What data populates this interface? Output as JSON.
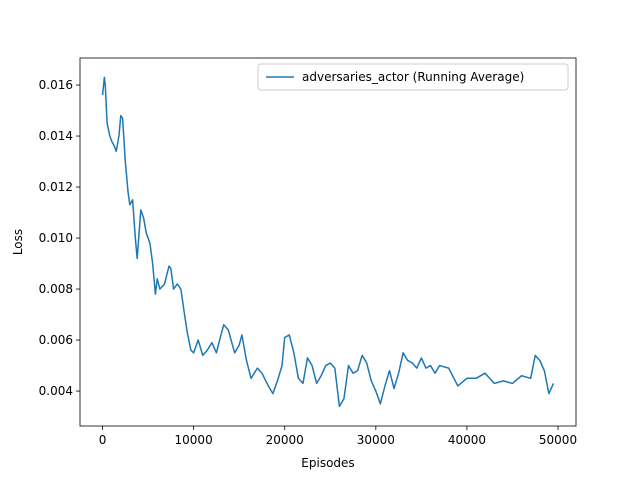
{
  "chart_data": {
    "type": "line",
    "xlabel": "Episodes",
    "ylabel": "Loss",
    "legend": "upper right",
    "x": [
      0,
      200,
      300,
      500,
      800,
      1000,
      1300,
      1500,
      1800,
      2000,
      2200,
      2500,
      2800,
      3000,
      3300,
      3600,
      3800,
      4200,
      4500,
      4800,
      5200,
      5500,
      5800,
      6000,
      6300,
      6800,
      7300,
      7500,
      7800,
      8200,
      8600,
      9000,
      9300,
      9700,
      10000,
      10500,
      11000,
      11500,
      12000,
      12500,
      13000,
      13300,
      13800,
      14500,
      15000,
      15300,
      15800,
      16300,
      17000,
      17500,
      18200,
      18700,
      19200,
      19700,
      20000,
      20500,
      21000,
      21500,
      22000,
      22500,
      23000,
      23500,
      24000,
      24500,
      25000,
      25500,
      26000,
      26500,
      27000,
      27500,
      28000,
      28500,
      29000,
      29500,
      30000,
      30500,
      31000,
      31500,
      32000,
      32500,
      33000,
      33500,
      34000,
      34500,
      35000,
      35500,
      36000,
      36500,
      37000,
      38000,
      39000,
      40000,
      41000,
      42000,
      43000,
      44000,
      45000,
      46000,
      47000,
      47500,
      48000,
      48500,
      49000,
      49500
    ],
    "series": [
      {
        "name": "adversaries_actor (Running Average)",
        "color": "#1f77b4",
        "values": [
          0.0156,
          0.0163,
          0.016,
          0.0145,
          0.014,
          0.0138,
          0.0136,
          0.0134,
          0.014,
          0.0148,
          0.0147,
          0.013,
          0.0118,
          0.0113,
          0.0115,
          0.01,
          0.0092,
          0.0111,
          0.0108,
          0.0102,
          0.0098,
          0.009,
          0.0078,
          0.0084,
          0.008,
          0.0082,
          0.0089,
          0.0088,
          0.008,
          0.0082,
          0.008,
          0.007,
          0.0063,
          0.0056,
          0.0055,
          0.006,
          0.0054,
          0.0056,
          0.0059,
          0.0055,
          0.0062,
          0.0066,
          0.0064,
          0.0055,
          0.0058,
          0.0062,
          0.0052,
          0.0045,
          0.0049,
          0.0047,
          0.0042,
          0.0039,
          0.0044,
          0.005,
          0.0061,
          0.0062,
          0.0055,
          0.0045,
          0.0043,
          0.0053,
          0.005,
          0.0043,
          0.0046,
          0.005,
          0.0051,
          0.0049,
          0.0034,
          0.0037,
          0.005,
          0.0047,
          0.0048,
          0.0054,
          0.0051,
          0.0044,
          0.004,
          0.0035,
          0.0042,
          0.0048,
          0.0041,
          0.0047,
          0.0055,
          0.0052,
          0.0051,
          0.0049,
          0.0053,
          0.0049,
          0.005,
          0.0047,
          0.005,
          0.0049,
          0.0042,
          0.0045,
          0.0045,
          0.0047,
          0.0043,
          0.0044,
          0.0043,
          0.0046,
          0.0045,
          0.0054,
          0.0052,
          0.0048,
          0.0039,
          0.0043
        ]
      }
    ],
    "xlim": [
      -2475,
      51975
    ],
    "xticks": [
      0,
      10000,
      20000,
      30000,
      40000,
      50000
    ],
    "ylim": [
      0.00263,
      0.01706
    ],
    "yticks": [
      0.004,
      0.006,
      0.008,
      {
        "value": 0.01,
        "label": "0.010"
      },
      0.012,
      0.014,
      0.016
    ]
  }
}
